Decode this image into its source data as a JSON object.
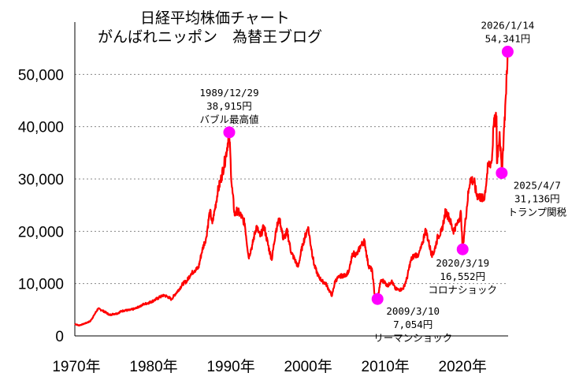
{
  "header": {
    "title_line1": "日経平均株価チャート",
    "title_line2": "がんばれニッポン　為替王ブログ"
  },
  "colors": {
    "line": "#ff0000",
    "marker": "#ff00ff",
    "grid": "#888888"
  },
  "chart_data": {
    "type": "line",
    "title": "日経平均株価チャート",
    "xlim": [
      1970,
      2026.1
    ],
    "ylim": [
      0,
      60000
    ],
    "y_ticks": [
      {
        "value": 0,
        "label": "0"
      },
      {
        "value": 10000,
        "label": "10,000"
      },
      {
        "value": 20000,
        "label": "20,000"
      },
      {
        "value": 30000,
        "label": "30,000"
      },
      {
        "value": 40000,
        "label": "40,000"
      },
      {
        "value": 50000,
        "label": "50,000"
      }
    ],
    "x_ticks": [
      {
        "value": 1970,
        "label": "1970年"
      },
      {
        "value": 1980,
        "label": "1980年"
      },
      {
        "value": 1990,
        "label": "1990年"
      },
      {
        "value": 2000,
        "label": "2000年"
      },
      {
        "value": 2010,
        "label": "2010年"
      },
      {
        "value": 2020,
        "label": "2020年"
      }
    ],
    "series": [
      {
        "name": "日経平均株価",
        "points": [
          [
            1970.0,
            2300
          ],
          [
            1970.5,
            2000
          ],
          [
            1971.0,
            2200
          ],
          [
            1971.5,
            2500
          ],
          [
            1972.0,
            2800
          ],
          [
            1972.5,
            4000
          ],
          [
            1973.0,
            5200
          ],
          [
            1973.5,
            4900
          ],
          [
            1974.0,
            4500
          ],
          [
            1974.5,
            4000
          ],
          [
            1975.0,
            4200
          ],
          [
            1975.5,
            4300
          ],
          [
            1976.0,
            4700
          ],
          [
            1976.5,
            4900
          ],
          [
            1977.0,
            4900
          ],
          [
            1977.5,
            5100
          ],
          [
            1978.0,
            5300
          ],
          [
            1978.5,
            5800
          ],
          [
            1979.0,
            6100
          ],
          [
            1979.5,
            6300
          ],
          [
            1980.0,
            6600
          ],
          [
            1980.5,
            7000
          ],
          [
            1981.0,
            7400
          ],
          [
            1981.5,
            7800
          ],
          [
            1982.0,
            7500
          ],
          [
            1982.5,
            7000
          ],
          [
            1983.0,
            8000
          ],
          [
            1983.5,
            8900
          ],
          [
            1984.0,
            10000
          ],
          [
            1984.5,
            10500
          ],
          [
            1985.0,
            11800
          ],
          [
            1985.5,
            12500
          ],
          [
            1986.0,
            13000
          ],
          [
            1986.5,
            16500
          ],
          [
            1987.0,
            18800
          ],
          [
            1987.5,
            24000
          ],
          [
            1987.8,
            21500
          ],
          [
            1988.0,
            23000
          ],
          [
            1988.5,
            27500
          ],
          [
            1989.0,
            30500
          ],
          [
            1989.5,
            34000
          ],
          [
            1989.99,
            38915
          ],
          [
            1990.3,
            29000
          ],
          [
            1990.7,
            23000
          ],
          [
            1991.0,
            24000
          ],
          [
            1991.5,
            23000
          ],
          [
            1992.0,
            21500
          ],
          [
            1992.5,
            15000
          ],
          [
            1993.0,
            17500
          ],
          [
            1993.5,
            21000
          ],
          [
            1994.0,
            19000
          ],
          [
            1994.5,
            21000
          ],
          [
            1995.0,
            17500
          ],
          [
            1995.5,
            14500
          ],
          [
            1996.0,
            20000
          ],
          [
            1996.5,
            22500
          ],
          [
            1997.0,
            18500
          ],
          [
            1997.5,
            20000
          ],
          [
            1998.0,
            16000
          ],
          [
            1998.5,
            14500
          ],
          [
            1998.9,
            13200
          ],
          [
            1999.5,
            17500
          ],
          [
            2000.2,
            20800
          ],
          [
            2000.7,
            16000
          ],
          [
            2001.0,
            13500
          ],
          [
            2001.5,
            11500
          ],
          [
            2002.0,
            10500
          ],
          [
            2002.5,
            10000
          ],
          [
            2003.0,
            8500
          ],
          [
            2003.3,
            7700
          ],
          [
            2003.7,
            10500
          ],
          [
            2004.0,
            11000
          ],
          [
            2004.5,
            11500
          ],
          [
            2005.0,
            11500
          ],
          [
            2005.5,
            12500
          ],
          [
            2006.0,
            15800
          ],
          [
            2006.5,
            15500
          ],
          [
            2007.0,
            17200
          ],
          [
            2007.5,
            18200
          ],
          [
            2008.0,
            13500
          ],
          [
            2008.5,
            12500
          ],
          [
            2008.8,
            8000
          ],
          [
            2009.19,
            7054
          ],
          [
            2009.6,
            10500
          ],
          [
            2010.0,
            10500
          ],
          [
            2010.5,
            9500
          ],
          [
            2011.0,
            10500
          ],
          [
            2011.5,
            9000
          ],
          [
            2012.0,
            8800
          ],
          [
            2012.5,
            9000
          ],
          [
            2013.0,
            11000
          ],
          [
            2013.5,
            14500
          ],
          [
            2014.0,
            15500
          ],
          [
            2014.5,
            15500
          ],
          [
            2015.0,
            17500
          ],
          [
            2015.4,
            20500
          ],
          [
            2015.8,
            18000
          ],
          [
            2016.2,
            15500
          ],
          [
            2016.5,
            16000
          ],
          [
            2017.0,
            19000
          ],
          [
            2017.5,
            20000
          ],
          [
            2018.0,
            23800
          ],
          [
            2018.5,
            22500
          ],
          [
            2018.99,
            20000
          ],
          [
            2019.5,
            21500
          ],
          [
            2020.0,
            23500
          ],
          [
            2020.21,
            16552
          ],
          [
            2020.6,
            22500
          ],
          [
            2021.0,
            28000
          ],
          [
            2021.2,
            30000
          ],
          [
            2021.7,
            29500
          ],
          [
            2022.0,
            27000
          ],
          [
            2022.5,
            26500
          ],
          [
            2023.0,
            26000
          ],
          [
            2023.5,
            32500
          ],
          [
            2024.0,
            33500
          ],
          [
            2024.2,
            40000
          ],
          [
            2024.6,
            42000
          ],
          [
            2024.65,
            33000
          ],
          [
            2025.0,
            39000
          ],
          [
            2025.27,
            31136
          ],
          [
            2025.6,
            40000
          ],
          [
            2025.8,
            46000
          ],
          [
            2026.04,
            54341
          ]
        ]
      }
    ],
    "annotations": [
      {
        "x": 1989.99,
        "y": 38915,
        "lines": [
          "1989/12/29",
          "38,915円",
          "バブル最高値"
        ],
        "pos": "above"
      },
      {
        "x": 2009.19,
        "y": 7054,
        "lines": [
          "2009/3/10",
          "7,054円",
          "リーマンショック"
        ],
        "pos": "below-right"
      },
      {
        "x": 2020.21,
        "y": 16552,
        "lines": [
          "2020/3/19",
          "16,552円",
          "コロナショック"
        ],
        "pos": "below"
      },
      {
        "x": 2025.27,
        "y": 31136,
        "lines": [
          "2025/4/7",
          "31,136円",
          "トランプ関税"
        ],
        "pos": "below-right"
      },
      {
        "x": 2026.04,
        "y": 54341,
        "lines": [
          "2026/1/14",
          "54,341円"
        ],
        "pos": "above"
      }
    ]
  }
}
